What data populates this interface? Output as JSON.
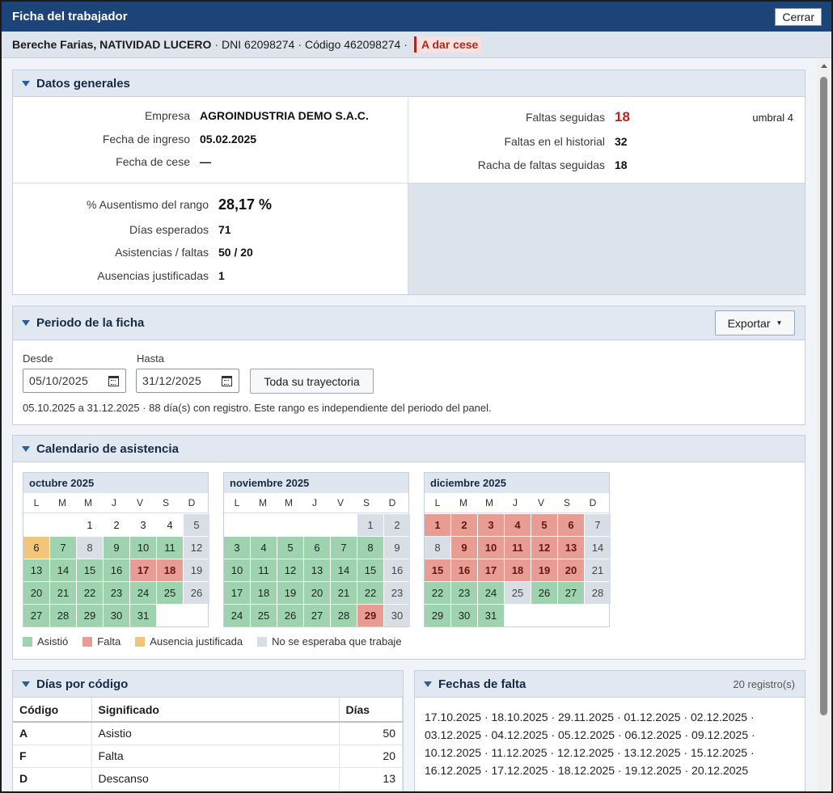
{
  "window": {
    "title": "Ficha del trabajador",
    "close_label": "Cerrar"
  },
  "header": {
    "name": "Bereche Farias, NATIVIDAD LUCERO",
    "sep": "·",
    "dni": "DNI 62098274",
    "codigo": "Código 462098274",
    "status": "A dar cese"
  },
  "datos_generales": {
    "title": "Datos generales",
    "empresa_label": "Empresa",
    "empresa": "AGROINDUSTRIA DEMO S.A.C.",
    "ingreso_label": "Fecha de ingreso",
    "ingreso": "05.02.2025",
    "cese_label": "Fecha de cese",
    "cese": "—",
    "faltas_seguidas_label": "Faltas seguidas",
    "faltas_seguidas": "18",
    "umbral": "umbral 4",
    "faltas_historial_label": "Faltas en el historial",
    "faltas_historial": "32",
    "racha_label": "Racha de faltas seguidas",
    "racha": "18",
    "ausentismo_label": "% Ausentismo del rango",
    "ausentismo": "28,17 %",
    "dias_esperados_label": "Días esperados",
    "dias_esperados": "71",
    "asist_faltas_label": "Asistencias / faltas",
    "asist_faltas": "50 / 20",
    "aus_just_label": "Ausencias justificadas",
    "aus_just": "1"
  },
  "periodo": {
    "title": "Periodo de la ficha",
    "export_label": "Exportar",
    "desde_label": "Desde",
    "desde": "05/10/2025",
    "hasta_label": "Hasta",
    "hasta": "31/12/2025",
    "trayectoria_label": "Toda su trayectoria",
    "note": "05.10.2025 a 31.12.2025 · 88 día(s) con registro. Este rango es independiente del periodo del panel."
  },
  "calendario": {
    "title": "Calendario de asistencia",
    "weekdays": [
      "L",
      "M",
      "M",
      "J",
      "V",
      "S",
      "D"
    ],
    "months": [
      {
        "name": "octubre 2025",
        "offset": 2,
        "days": [
          [
            "1",
            "W"
          ],
          [
            "2",
            "W"
          ],
          [
            "3",
            "W"
          ],
          [
            "4",
            "W"
          ],
          [
            "5",
            "N"
          ],
          [
            "6",
            "J"
          ],
          [
            "7",
            "A"
          ],
          [
            "8",
            "N"
          ],
          [
            "9",
            "A"
          ],
          [
            "10",
            "A"
          ],
          [
            "11",
            "A"
          ],
          [
            "12",
            "N"
          ],
          [
            "13",
            "A"
          ],
          [
            "14",
            "A"
          ],
          [
            "15",
            "A"
          ],
          [
            "16",
            "A"
          ],
          [
            "17",
            "F"
          ],
          [
            "18",
            "F"
          ],
          [
            "19",
            "N"
          ],
          [
            "20",
            "A"
          ],
          [
            "21",
            "A"
          ],
          [
            "22",
            "A"
          ],
          [
            "23",
            "A"
          ],
          [
            "24",
            "A"
          ],
          [
            "25",
            "A"
          ],
          [
            "26",
            "N"
          ],
          [
            "27",
            "A"
          ],
          [
            "28",
            "A"
          ],
          [
            "29",
            "A"
          ],
          [
            "30",
            "A"
          ],
          [
            "31",
            "A"
          ]
        ]
      },
      {
        "name": "noviembre 2025",
        "offset": 5,
        "days": [
          [
            "1",
            "N"
          ],
          [
            "2",
            "N"
          ],
          [
            "3",
            "A"
          ],
          [
            "4",
            "A"
          ],
          [
            "5",
            "A"
          ],
          [
            "6",
            "A"
          ],
          [
            "7",
            "A"
          ],
          [
            "8",
            "A"
          ],
          [
            "9",
            "N"
          ],
          [
            "10",
            "A"
          ],
          [
            "11",
            "A"
          ],
          [
            "12",
            "A"
          ],
          [
            "13",
            "A"
          ],
          [
            "14",
            "A"
          ],
          [
            "15",
            "A"
          ],
          [
            "16",
            "N"
          ],
          [
            "17",
            "A"
          ],
          [
            "18",
            "A"
          ],
          [
            "19",
            "A"
          ],
          [
            "20",
            "A"
          ],
          [
            "21",
            "A"
          ],
          [
            "22",
            "A"
          ],
          [
            "23",
            "N"
          ],
          [
            "24",
            "A"
          ],
          [
            "25",
            "A"
          ],
          [
            "26",
            "A"
          ],
          [
            "27",
            "A"
          ],
          [
            "28",
            "A"
          ],
          [
            "29",
            "F"
          ],
          [
            "30",
            "N"
          ]
        ]
      },
      {
        "name": "diciembre 2025",
        "offset": 0,
        "days": [
          [
            "1",
            "F"
          ],
          [
            "2",
            "F"
          ],
          [
            "3",
            "F"
          ],
          [
            "4",
            "F"
          ],
          [
            "5",
            "F"
          ],
          [
            "6",
            "F"
          ],
          [
            "7",
            "N"
          ],
          [
            "8",
            "N"
          ],
          [
            "9",
            "F"
          ],
          [
            "10",
            "F"
          ],
          [
            "11",
            "F"
          ],
          [
            "12",
            "F"
          ],
          [
            "13",
            "F"
          ],
          [
            "14",
            "N"
          ],
          [
            "15",
            "F"
          ],
          [
            "16",
            "F"
          ],
          [
            "17",
            "F"
          ],
          [
            "18",
            "F"
          ],
          [
            "19",
            "F"
          ],
          [
            "20",
            "F"
          ],
          [
            "21",
            "N"
          ],
          [
            "22",
            "A"
          ],
          [
            "23",
            "A"
          ],
          [
            "24",
            "A"
          ],
          [
            "25",
            "N"
          ],
          [
            "26",
            "A"
          ],
          [
            "27",
            "A"
          ],
          [
            "28",
            "N"
          ],
          [
            "29",
            "A"
          ],
          [
            "30",
            "A"
          ],
          [
            "31",
            "A"
          ]
        ]
      }
    ],
    "legend": [
      {
        "label": "Asistió",
        "color": "#9fd3b0"
      },
      {
        "label": "Falta",
        "color": "#e79d93"
      },
      {
        "label": "Ausencia justificada",
        "color": "#f1c57a"
      },
      {
        "label": "No se esperaba que trabaje",
        "color": "#d9dee6"
      }
    ]
  },
  "dias_por_codigo": {
    "title": "Días por código",
    "columns": [
      "Código",
      "Significado",
      "Días"
    ],
    "rows": [
      [
        "A",
        "Asistio",
        "50"
      ],
      [
        "F",
        "Falta",
        "20"
      ],
      [
        "D",
        "Descanso",
        "13"
      ]
    ]
  },
  "fechas_falta": {
    "title": "Fechas de falta",
    "count": "20 registro(s)",
    "lines": [
      "17.10.2025 · 18.10.2025 · 29.11.2025 · 01.12.2025 · 02.12.2025 ·",
      "03.12.2025 · 04.12.2025 · 05.12.2025 · 06.12.2025 · 09.12.2025 ·",
      "10.12.2025 · 11.12.2025 · 12.12.2025 · 13.12.2025 · 15.12.2025 ·",
      "16.12.2025 · 17.12.2025 · 18.12.2025 · 19.12.2025 · 20.12.2025"
    ]
  }
}
